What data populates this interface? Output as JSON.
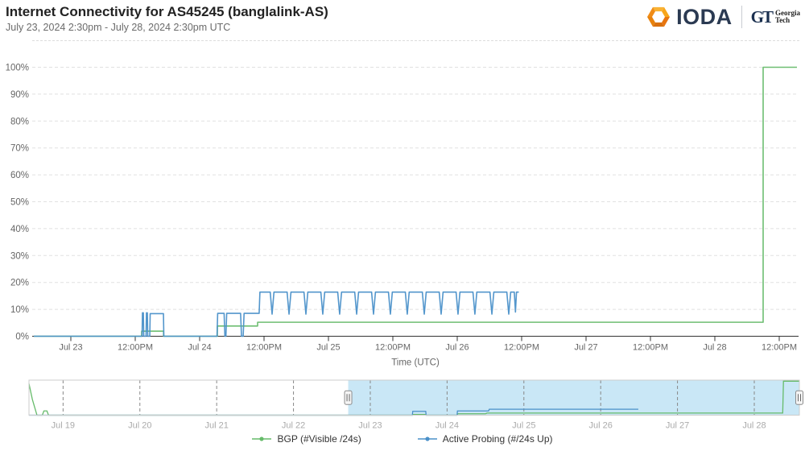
{
  "header": {
    "title": "Internet Connectivity for AS45245 (banglalink-AS)",
    "subtitle": "July 23, 2024 2:30pm - July 28, 2024 2:30pm UTC",
    "logo_text": "IODA",
    "gt_monogram": "GT",
    "gt_words": [
      "Georgia",
      "Tech"
    ]
  },
  "icons": {
    "brand_icon": "ioda-hexagon-icon",
    "nav_handle": "drag-handle-icon"
  },
  "colors": {
    "bgp_green": "#66bb6a",
    "probing_blue": "#4a90c9",
    "selection_fill": "#c9e7f6",
    "grid": "#e1e1e1",
    "axis": "#333333",
    "tick_label": "#666666",
    "nav_label": "#aaaaaa",
    "nav_border": "#cccccc",
    "hex_orange_light": "#f9b234",
    "hex_orange_mid": "#f08c16",
    "hex_orange_dark": "#d9700e"
  },
  "legend": [
    {
      "id": "bgp",
      "label": "BGP (#Visible /24s)",
      "color": "#66bb6a"
    },
    {
      "id": "probing",
      "label": "Active Probing (#/24s Up)",
      "color": "#4a90c9"
    }
  ],
  "chart_data": {
    "type": "line",
    "title": "Internet Connectivity for AS45245 (banglalink-AS)",
    "xlabel": "Time (UTC)",
    "ylabel": "",
    "x_unit": "day of July 2024 (fractional, UTC)",
    "x_range": [
      22.7125,
      28.6375
    ],
    "ylim": [
      0,
      100
    ],
    "grid": "dashed horizontal",
    "legend_position": "bottom",
    "y_ticks": [
      {
        "v": 0,
        "label": "0%"
      },
      {
        "v": 10,
        "label": "10%"
      },
      {
        "v": 20,
        "label": "20%"
      },
      {
        "v": 30,
        "label": "30%"
      },
      {
        "v": 40,
        "label": "40%"
      },
      {
        "v": 50,
        "label": "50%"
      },
      {
        "v": 60,
        "label": "60%"
      },
      {
        "v": 70,
        "label": "70%"
      },
      {
        "v": 80,
        "label": "80%"
      },
      {
        "v": 90,
        "label": "90%"
      },
      {
        "v": 100,
        "label": "100%"
      }
    ],
    "x_ticks": [
      {
        "t": 23.0,
        "label": "Jul 23"
      },
      {
        "t": 23.5,
        "label": "12:00PM"
      },
      {
        "t": 24.0,
        "label": "Jul 24"
      },
      {
        "t": 24.5,
        "label": "12:00PM"
      },
      {
        "t": 25.0,
        "label": "Jul 25"
      },
      {
        "t": 25.5,
        "label": "12:00PM"
      },
      {
        "t": 26.0,
        "label": "Jul 26"
      },
      {
        "t": 26.5,
        "label": "12:00PM"
      },
      {
        "t": 27.0,
        "label": "Jul 27"
      },
      {
        "t": 27.5,
        "label": "12:00PM"
      },
      {
        "t": 28.0,
        "label": "Jul 28"
      },
      {
        "t": 28.5,
        "label": "12:00PM"
      }
    ],
    "series": [
      {
        "name": "BGP (#Visible /24s)",
        "color": "#66bb6a",
        "points": [
          [
            22.7125,
            0
          ],
          [
            23.55,
            0
          ],
          [
            23.55,
            1.9
          ],
          [
            23.72,
            1.9
          ],
          [
            23.72,
            0
          ],
          [
            24.1375,
            0
          ],
          [
            24.1375,
            3.8
          ],
          [
            24.45,
            3.8
          ],
          [
            24.45,
            5.2
          ],
          [
            28.375,
            5.2
          ],
          [
            28.375,
            100
          ],
          [
            28.6375,
            100
          ]
        ]
      },
      {
        "name": "Active Probing (#/24s Up)",
        "color": "#4a90c9",
        "points": [
          [
            22.7125,
            0
          ],
          [
            23.553,
            0
          ],
          [
            23.556,
            8.7
          ],
          [
            23.563,
            8.7
          ],
          [
            23.566,
            0
          ],
          [
            23.584,
            0
          ],
          [
            23.587,
            8.7
          ],
          [
            23.594,
            8.7
          ],
          [
            23.597,
            0
          ],
          [
            23.613,
            0
          ],
          [
            23.616,
            8.4
          ],
          [
            23.719,
            8.4
          ],
          [
            23.722,
            0
          ],
          [
            24.135,
            0
          ],
          [
            24.14,
            8.5
          ],
          [
            24.19,
            8.5
          ],
          [
            24.196,
            0
          ],
          [
            24.204,
            0
          ],
          [
            24.21,
            8.5
          ],
          [
            24.318,
            8.5
          ],
          [
            24.325,
            0
          ],
          [
            24.338,
            0
          ],
          [
            24.345,
            8.5
          ],
          [
            24.462,
            8.5
          ],
          [
            24.468,
            16.4
          ],
          [
            24.548,
            16.4
          ],
          [
            24.5625,
            8.2
          ],
          [
            24.577,
            16.4
          ],
          [
            24.679,
            16.4
          ],
          [
            24.694,
            8.2
          ],
          [
            24.709,
            16.4
          ],
          [
            24.81,
            16.4
          ],
          [
            24.825,
            8.2
          ],
          [
            24.84,
            16.4
          ],
          [
            24.941,
            16.4
          ],
          [
            24.956,
            8.2
          ],
          [
            24.971,
            16.4
          ],
          [
            25.072,
            16.4
          ],
          [
            25.087,
            8.2
          ],
          [
            25.102,
            16.4
          ],
          [
            25.204,
            16.4
          ],
          [
            25.219,
            8.2
          ],
          [
            25.234,
            16.4
          ],
          [
            25.335,
            16.4
          ],
          [
            25.35,
            8.2
          ],
          [
            25.365,
            16.4
          ],
          [
            25.466,
            16.4
          ],
          [
            25.481,
            8.2
          ],
          [
            25.496,
            16.4
          ],
          [
            25.597,
            16.4
          ],
          [
            25.612,
            8.2
          ],
          [
            25.627,
            16.4
          ],
          [
            25.729,
            16.4
          ],
          [
            25.744,
            8.2
          ],
          [
            25.759,
            16.4
          ],
          [
            25.86,
            16.4
          ],
          [
            25.875,
            8.2
          ],
          [
            25.89,
            16.4
          ],
          [
            25.991,
            16.4
          ],
          [
            26.006,
            8.2
          ],
          [
            26.021,
            16.4
          ],
          [
            26.122,
            16.4
          ],
          [
            26.137,
            8.2
          ],
          [
            26.152,
            16.4
          ],
          [
            26.254,
            16.4
          ],
          [
            26.269,
            8.2
          ],
          [
            26.284,
            16.4
          ],
          [
            26.385,
            16.4
          ],
          [
            26.4,
            8.2
          ],
          [
            26.415,
            16.4
          ],
          [
            26.443,
            16.4
          ],
          [
            26.452,
            9
          ],
          [
            26.46,
            16.4
          ],
          [
            26.478,
            16.4
          ]
        ]
      }
    ],
    "navigator": {
      "x_range": [
        18.556,
        28.587
      ],
      "selection": [
        22.7125,
        28.587
      ],
      "x_ticks": [
        {
          "t": 19,
          "label": "Jul 19"
        },
        {
          "t": 20,
          "label": "Jul 20"
        },
        {
          "t": 21,
          "label": "Jul 21"
        },
        {
          "t": 22,
          "label": "Jul 22"
        },
        {
          "t": 23,
          "label": "Jul 23"
        },
        {
          "t": 24,
          "label": "Jul 24"
        },
        {
          "t": 25,
          "label": "Jul 25"
        },
        {
          "t": 26,
          "label": "Jul 26"
        },
        {
          "t": 27,
          "label": "Jul 27"
        },
        {
          "t": 28,
          "label": "Jul 28"
        }
      ],
      "series": [
        {
          "name": "BGP (#Visible /24s)",
          "color": "#66bb6a",
          "points": [
            [
              18.556,
              90
            ],
            [
              18.6,
              45
            ],
            [
              18.66,
              0
            ],
            [
              18.73,
              0
            ],
            [
              18.75,
              12
            ],
            [
              18.79,
              12
            ],
            [
              18.81,
              0
            ],
            [
              23.55,
              0
            ],
            [
              23.555,
              2
            ],
            [
              23.72,
              2
            ],
            [
              23.725,
              0
            ],
            [
              24.13,
              0
            ],
            [
              24.14,
              4
            ],
            [
              24.5,
              4
            ],
            [
              24.52,
              6
            ],
            [
              28.37,
              6
            ],
            [
              28.38,
              97
            ],
            [
              28.587,
              97
            ]
          ]
        },
        {
          "name": "Active Probing (#/24s Up)",
          "color": "#4a90c9",
          "points": [
            [
              18.556,
              0
            ],
            [
              23.548,
              0
            ],
            [
              23.553,
              11
            ],
            [
              23.722,
              11
            ],
            [
              23.727,
              0
            ],
            [
              24.13,
              0
            ],
            [
              24.135,
              12
            ],
            [
              24.54,
              12
            ],
            [
              24.55,
              17
            ],
            [
              26.49,
              17
            ]
          ]
        }
      ]
    }
  }
}
